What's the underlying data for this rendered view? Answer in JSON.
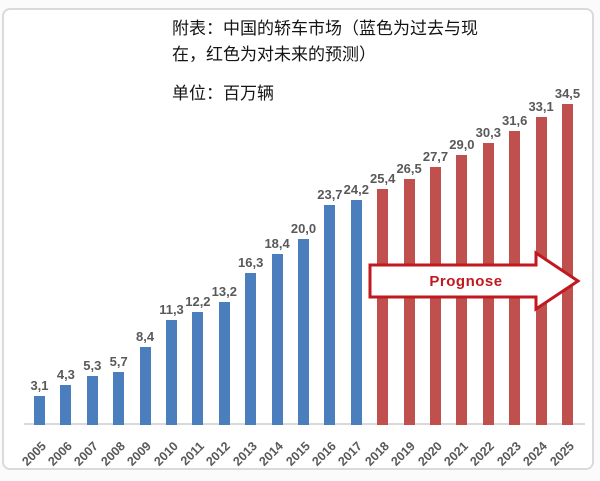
{
  "header": {
    "title_line1": "附表：中国的轿车市场（蓝色为过去与现",
    "title_line2": "在，红色为对未来的预测）",
    "unit_label": "单位：百万辆"
  },
  "arrow": {
    "label": "Prognose",
    "color": "#c0191f"
  },
  "chart_data": {
    "type": "bar",
    "title": "附表：中国的轿车市场（蓝色为过去与现在，红色为对未来的预测）",
    "unit": "单位：百万辆",
    "xlabel": "",
    "ylabel": "",
    "ylim": [
      0,
      36
    ],
    "grid": false,
    "legend": "none",
    "categories": [
      "2005",
      "2006",
      "2007",
      "2008",
      "2009",
      "2010",
      "2011",
      "2012",
      "2013",
      "2014",
      "2015",
      "2016",
      "2017",
      "2018",
      "2019",
      "2020",
      "2021",
      "2022",
      "2023",
      "2024",
      "2025"
    ],
    "values": [
      3.1,
      4.3,
      5.3,
      5.7,
      8.4,
      11.3,
      12.2,
      13.2,
      16.3,
      18.4,
      20.0,
      23.7,
      24.2,
      25.4,
      26.5,
      27.7,
      29.0,
      30.3,
      31.6,
      33.1,
      34.5
    ],
    "value_labels": [
      "3,1",
      "4,3",
      "5,3",
      "5,7",
      "8,4",
      "11,3",
      "12,2",
      "13,2",
      "16,3",
      "18,4",
      "20,0",
      "23,7",
      "24,2",
      "25,4",
      "26,5",
      "27,7",
      "29,0",
      "30,3",
      "31,6",
      "33,1",
      "34,5"
    ],
    "series": [
      {
        "name": "过去与现在 (blue, 2005-2017)",
        "color": "#4a7ebc"
      },
      {
        "name": "对未来的预测 (red forecast, 2018-2025)",
        "color": "#c0504d"
      }
    ],
    "forecast_start_index": 13,
    "colors": {
      "past": "#4a7ebc",
      "forecast": "#c0504d"
    },
    "label_color": "#595959",
    "axis_color": "#d9d9d9",
    "annotation": "Prognose"
  }
}
